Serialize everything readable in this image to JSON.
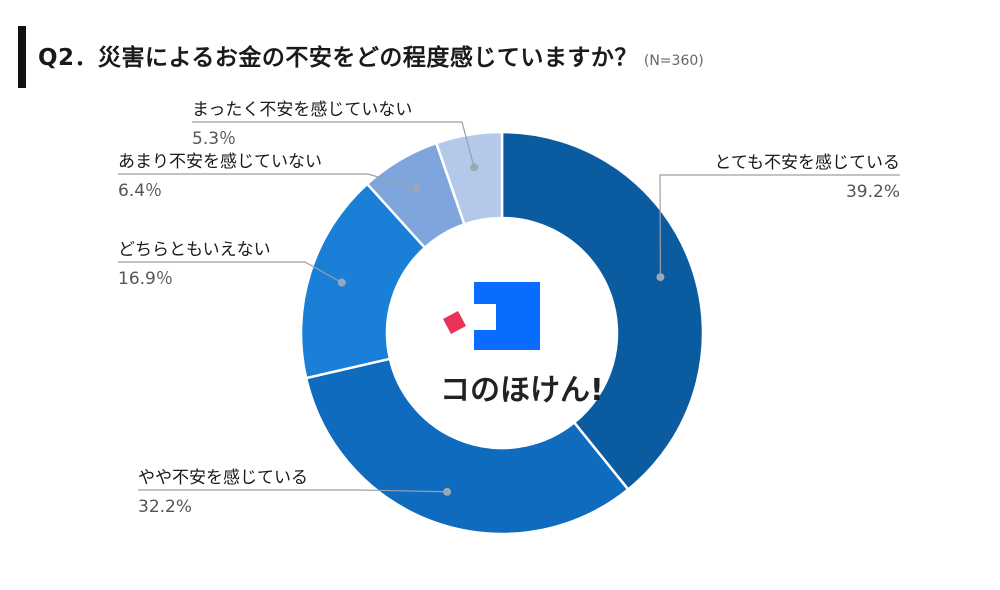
{
  "header": {
    "title": "Q2．災害によるお金の不安をどの程度感じていますか？",
    "note": "(N=360)"
  },
  "brand": {
    "name": "コのほけん!",
    "colors": {
      "primary": "#0a6cff",
      "accent": "#e8345a"
    }
  },
  "chart_data": {
    "type": "pie",
    "title": "Q2．災害によるお金の不安をどの程度感じていますか？",
    "categories": [
      "とても不安を感じている",
      "やや不安を感じている",
      "どちらともいえない",
      "あまり不安を感じていない",
      "まったく不安を感じていない"
    ],
    "values": [
      39.2,
      32.2,
      16.9,
      6.4,
      5.3
    ],
    "value_labels": [
      "39.2%",
      "32.2%",
      "16.9％",
      "6.4％",
      "5.3％"
    ],
    "colors": [
      "#0b5ba0",
      "#0f6bbd",
      "#1a7fd6",
      "#7ea6dc",
      "#b4c8ea"
    ],
    "style": "donut"
  }
}
